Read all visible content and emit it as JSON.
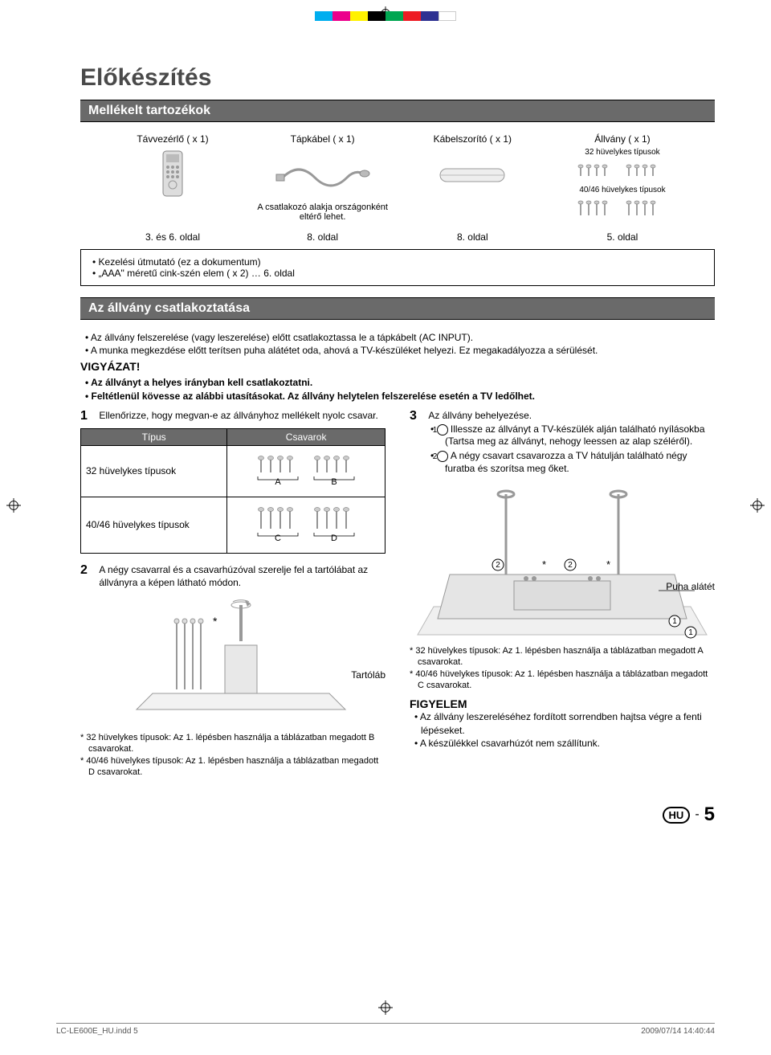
{
  "registration_marks": true,
  "color_bar": [
    "#00aeef",
    "#ec008c",
    "#fff200",
    "#000000",
    "#00a651",
    "#ed1c24",
    "#2e3192",
    "#ffffff"
  ],
  "main_title": "Előkészítés",
  "section1_title": "Mellékelt tartozékok",
  "accessories": {
    "items": [
      {
        "label": "Távvezérlő ( x 1)",
        "page_ref": "3. és 6. oldal",
        "sub": ""
      },
      {
        "label": "Tápkábel ( x 1)",
        "page_ref": "8. oldal",
        "sub": "A csatlakozó alakja országonként eltérő lehet."
      },
      {
        "label": "Kábelszorító ( x 1)",
        "page_ref": "8. oldal",
        "sub": ""
      },
      {
        "label": "Állvány ( x 1)",
        "page_ref": "5. oldal",
        "sub32": "32 hüvelykes típusok",
        "sub40": "40/46 hüvelykes típusok"
      }
    ]
  },
  "notes": [
    "Kezelési útmutató (ez a dokumentum)",
    "„AAA\" méretű cink-szén elem ( x 2) … 6. oldal"
  ],
  "section2_title": "Az állvány csatlakoztatása",
  "bullets1": [
    "Az állvány felszerelése (vagy leszerelése) előtt csatlakoztassa le a tápkábelt (AC INPUT).",
    "A munka megkezdése előtt terítsen puha alátétet oda, ahová a TV-készüléket helyezi. Ez megakadályozza a sérülését."
  ],
  "warning_title": "VIGYÁZAT!",
  "bullets2": [
    "Az állványt a helyes irányban kell csatlakoztatni.",
    "Feltétlenül kövesse az alábbi utasításokat. Az állvány helytelen felszerelése esetén a TV ledőlhet."
  ],
  "step1": {
    "num": "1",
    "text": "Ellenőrizze, hogy megvan-e az állványhoz mellékelt nyolc csavar."
  },
  "screw_table": {
    "headers": [
      "Típus",
      "Csavarok"
    ],
    "rows": [
      {
        "type": "32 hüvelykes típusok",
        "labels": [
          "A",
          "B"
        ]
      },
      {
        "type": "40/46 hüvelykes típusok",
        "labels": [
          "C",
          "D"
        ]
      }
    ]
  },
  "step2": {
    "num": "2",
    "text": "A négy csavarral és a csavarhúzóval szerelje fel a tartólábat az állványra a képen látható módon."
  },
  "step2_label": "Tartóláb",
  "step2_footnotes": [
    "32 hüvelykes típusok: Az 1. lépésben használja a táblázatban megadott B csavarokat.",
    "40/46 hüvelykes típusok: Az 1. lépésben használja a táblázatban megadott D csavarokat."
  ],
  "step3": {
    "num": "3",
    "text": "Az állvány behelyezése.",
    "sub": [
      "Illessze az állványt a TV-készülék alján található nyílásokba (Tartsa meg az állványt, nehogy leessen az alap széléről).",
      "A négy csavart csavarozza a TV hátulján található négy furatba és szorítsa meg őket."
    ]
  },
  "step3_label": "Puha alátét",
  "step3_footnotes": [
    "32 hüvelykes típusok: Az 1. lépésben használja a táblázatban megadott A csavarokat.",
    "40/46 hüvelykes típusok: Az 1. lépésben használja a táblázatban megadott C csavarokat."
  ],
  "attention_title": "FIGYELEM",
  "attention_bullets": [
    "Az állvány leszereléséhez fordított sorrendben hajtsa végre a fenti lépéseket.",
    "A készülékkel csavarhúzót nem szállítunk."
  ],
  "page_marker": {
    "code": "HU",
    "sep": "-",
    "num": "5"
  },
  "footer": {
    "left": "LC-LE600E_HU.indd   5",
    "right": "2009/07/14   14:40:44"
  }
}
